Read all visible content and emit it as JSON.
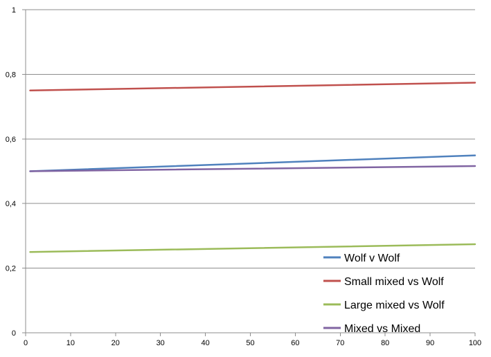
{
  "chart_data": {
    "type": "line",
    "title": "",
    "xlabel": "",
    "ylabel": "",
    "xlim": [
      0,
      100
    ],
    "ylim": [
      0,
      1
    ],
    "x_ticks": [
      "0",
      "10",
      "20",
      "30",
      "40",
      "50",
      "60",
      "70",
      "80",
      "90",
      "100"
    ],
    "y_ticks": [
      "0",
      "0,2",
      "0,4",
      "0,6",
      "0,8",
      "1"
    ],
    "grid": true,
    "legend_position": "bottom-right",
    "series": [
      {
        "name": "Wolf v Wolf",
        "color": "#4f81bd",
        "x": [
          1,
          100
        ],
        "y": [
          0.5,
          0.549
        ]
      },
      {
        "name": "Small mixed vs Wolf",
        "color": "#c0504d",
        "x": [
          1,
          100
        ],
        "y": [
          0.75,
          0.774
        ]
      },
      {
        "name": "Large mixed vs Wolf",
        "color": "#9bbb59",
        "x": [
          1,
          100
        ],
        "y": [
          0.25,
          0.274
        ]
      },
      {
        "name": "Mixed vs Mixed",
        "color": "#8064a2",
        "x": [
          1,
          100
        ],
        "y": [
          0.5,
          0.516
        ]
      }
    ]
  }
}
